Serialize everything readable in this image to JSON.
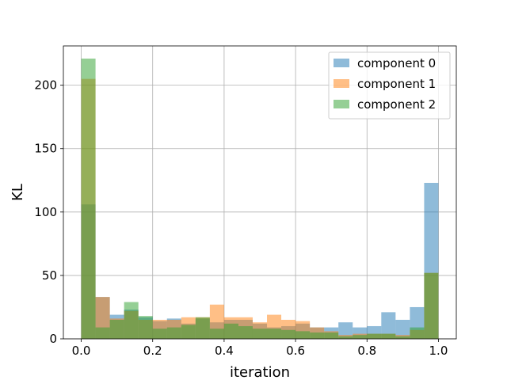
{
  "chart_data": {
    "type": "histogram",
    "title": "",
    "xlabel": "iteration",
    "ylabel": "KL",
    "xlim": [
      -0.05,
      1.05
    ],
    "ylim": [
      0,
      231
    ],
    "xticks": [
      "0.0",
      "0.2",
      "0.4",
      "0.6",
      "0.8",
      "1.0"
    ],
    "yticks": [
      "0",
      "50",
      "100",
      "150",
      "200"
    ],
    "grid": true,
    "legend_position": "top-right",
    "bin_edges": [
      0.0,
      0.04,
      0.08,
      0.12,
      0.16,
      0.2,
      0.24,
      0.28,
      0.32,
      0.36,
      0.4,
      0.44,
      0.48,
      0.52,
      0.56,
      0.6,
      0.64,
      0.68,
      0.72,
      0.76,
      0.8,
      0.84,
      0.88,
      0.92,
      0.96,
      1.0
    ],
    "series": [
      {
        "name": "component 0",
        "color": "#1f77b4",
        "values": [
          106,
          33,
          19,
          23,
          17,
          14,
          16,
          12,
          16,
          13,
          15,
          15,
          12,
          9,
          10,
          12,
          9,
          9,
          13,
          9,
          10,
          21,
          15,
          25,
          123
        ]
      },
      {
        "name": "component 1",
        "color": "#ff7f0e",
        "values": [
          205,
          33,
          16,
          22,
          15,
          15,
          15,
          17,
          17,
          27,
          17,
          17,
          13,
          19,
          15,
          14,
          9,
          6,
          3,
          4,
          4,
          4,
          3,
          7,
          52
        ]
      },
      {
        "name": "component 2",
        "color": "#2ca02c",
        "values": [
          221,
          9,
          15,
          29,
          18,
          8,
          9,
          11,
          17,
          8,
          12,
          10,
          8,
          8,
          7,
          6,
          5,
          5,
          2,
          3,
          4,
          4,
          2,
          9,
          52
        ]
      }
    ],
    "alpha": 0.5
  }
}
